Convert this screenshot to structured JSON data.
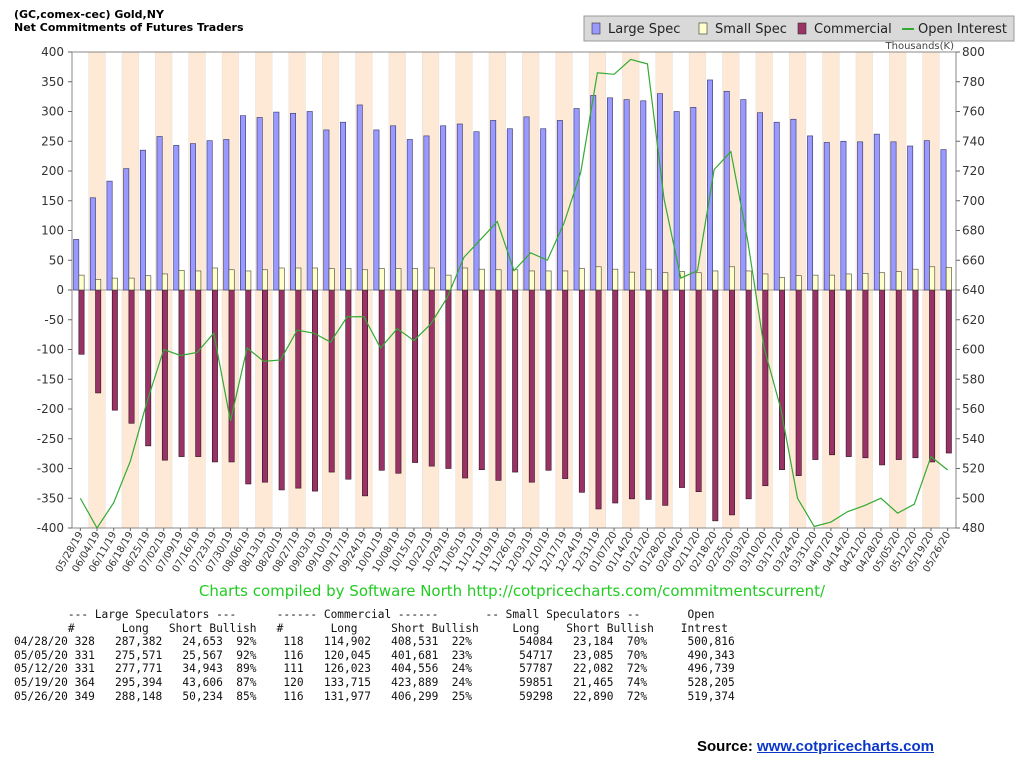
{
  "chart_data": {
    "type": "bar",
    "title": "(GC,comex-cec) Gold,NY",
    "subtitle": "Net Commitments of Futures Traders",
    "categories": [
      "05/28/19",
      "06/04/19",
      "06/11/19",
      "06/18/19",
      "06/25/19",
      "07/02/19",
      "07/09/19",
      "07/16/19",
      "07/23/19",
      "07/30/19",
      "08/06/19",
      "08/13/19",
      "08/20/19",
      "08/27/19",
      "09/03/19",
      "09/10/19",
      "09/17/19",
      "09/24/19",
      "10/01/19",
      "10/08/19",
      "10/15/19",
      "10/22/19",
      "10/29/19",
      "11/05/19",
      "11/12/19",
      "11/19/19",
      "11/26/19",
      "12/03/19",
      "12/10/19",
      "12/17/19",
      "12/24/19",
      "12/31/19",
      "01/07/20",
      "01/14/20",
      "01/21/20",
      "01/28/20",
      "02/04/20",
      "02/11/20",
      "02/18/20",
      "02/25/20",
      "03/03/20",
      "03/10/20",
      "03/17/20",
      "03/24/20",
      "03/31/20",
      "04/07/20",
      "04/14/20",
      "04/21/20",
      "04/28/20",
      "05/05/20",
      "05/12/20",
      "05/19/20",
      "05/26/20"
    ],
    "series": [
      {
        "name": "Large Spec",
        "color": "#9999ff",
        "values": [
          85,
          155,
          183,
          204,
          235,
          258,
          243,
          246,
          251,
          253,
          293,
          290,
          299,
          297,
          300,
          269,
          282,
          311,
          269,
          276,
          253,
          259,
          276,
          279,
          266,
          285,
          271,
          291,
          271,
          285,
          305,
          327,
          323,
          320,
          318,
          330,
          300,
          307,
          353,
          334,
          320,
          298,
          282,
          287,
          259,
          248,
          250,
          249,
          262,
          249,
          242,
          251,
          236
        ]
      },
      {
        "name": "Small Spec",
        "color": "#ffffcc",
        "values": [
          25,
          18,
          20,
          20,
          24,
          27,
          33,
          32,
          37,
          34,
          32,
          34,
          37,
          37,
          37,
          36,
          36,
          34,
          36,
          36,
          36,
          37,
          25,
          37,
          35,
          34,
          34,
          32,
          32,
          32,
          36,
          39,
          35,
          30,
          35,
          29,
          31,
          29,
          32,
          39,
          32,
          27,
          21,
          24,
          25,
          25,
          27,
          28,
          29,
          31,
          35,
          39,
          38
        ]
      },
      {
        "name": "Commercial",
        "color": "#993366",
        "values": [
          -108,
          -173,
          -202,
          -224,
          -262,
          -286,
          -280,
          -280,
          -289,
          -289,
          -326,
          -323,
          -336,
          -333,
          -338,
          -306,
          -318,
          -346,
          -303,
          -308,
          -290,
          -296,
          -300,
          -316,
          -302,
          -320,
          -306,
          -323,
          -303,
          -317,
          -340,
          -368,
          -358,
          -351,
          -352,
          -362,
          -332,
          -339,
          -388,
          -378,
          -351,
          -329,
          -302,
          -312,
          -285,
          -277,
          -280,
          -282,
          -294,
          -285,
          -282,
          -289,
          -274
        ]
      },
      {
        "name": "Open Interest",
        "color": "#33aa33",
        "values": [
          500,
          480,
          497,
          525,
          565,
          600,
          596,
          598,
          611,
          552,
          601,
          592,
          593,
          613,
          611,
          605,
          622,
          622,
          601,
          614,
          606,
          617,
          635,
          662,
          674,
          686,
          653,
          665,
          660,
          685,
          719,
          786,
          785,
          795,
          792,
          701,
          648,
          653,
          721,
          733,
          674,
          601,
          560,
          500,
          481,
          484,
          491,
          495,
          500,
          490,
          496,
          528,
          519
        ]
      }
    ],
    "ylabel_left": "",
    "ylim_left": [
      -400,
      400
    ],
    "yticks_left": [
      400,
      350,
      300,
      250,
      200,
      150,
      100,
      50,
      0,
      -50,
      -100,
      -150,
      -200,
      -250,
      -300,
      -350,
      -400
    ],
    "ylabel_right": "Thousands(K)",
    "ylim_right": [
      480,
      800
    ],
    "yticks_right": [
      800,
      780,
      760,
      740,
      720,
      700,
      680,
      660,
      640,
      620,
      600,
      580,
      560,
      540,
      520,
      500,
      480
    ],
    "legend_position": "top-right",
    "grid": "alternating vertical bands"
  },
  "credit": "Charts compiled by Software North  http://cotpricecharts.com/commitmentscurrent/",
  "stats_table": {
    "header1": "--- Large Speculators ---      ------ Commercial ------       -- Small Speculators --       Open",
    "header2": "#       Long   Short Bullish   #       Long     Short Bullish     Long    Short Bullish    Intrest",
    "rows": [
      [
        "04/28/20",
        "328",
        "287,382",
        "24,653",
        "92%",
        "118",
        "114,902",
        "408,531",
        "22%",
        "54084",
        "23,184",
        "70%",
        "500,816"
      ],
      [
        "05/05/20",
        "331",
        "275,571",
        "25,567",
        "92%",
        "116",
        "120,045",
        "401,681",
        "23%",
        "54717",
        "23,085",
        "70%",
        "490,343"
      ],
      [
        "05/12/20",
        "331",
        "277,771",
        "34,943",
        "89%",
        "111",
        "126,023",
        "404,556",
        "24%",
        "57787",
        "22,082",
        "72%",
        "496,739"
      ],
      [
        "05/19/20",
        "364",
        "295,394",
        "43,606",
        "87%",
        "120",
        "133,715",
        "423,889",
        "24%",
        "59851",
        "21,465",
        "74%",
        "528,205"
      ],
      [
        "05/26/20",
        "349",
        "288,148",
        "50,234",
        "85%",
        "116",
        "131,977",
        "406,299",
        "25%",
        "59298",
        "22,890",
        "72%",
        "519,374"
      ]
    ]
  },
  "source": {
    "label": "Source: ",
    "link_text": "www.cotpricecharts.com"
  }
}
